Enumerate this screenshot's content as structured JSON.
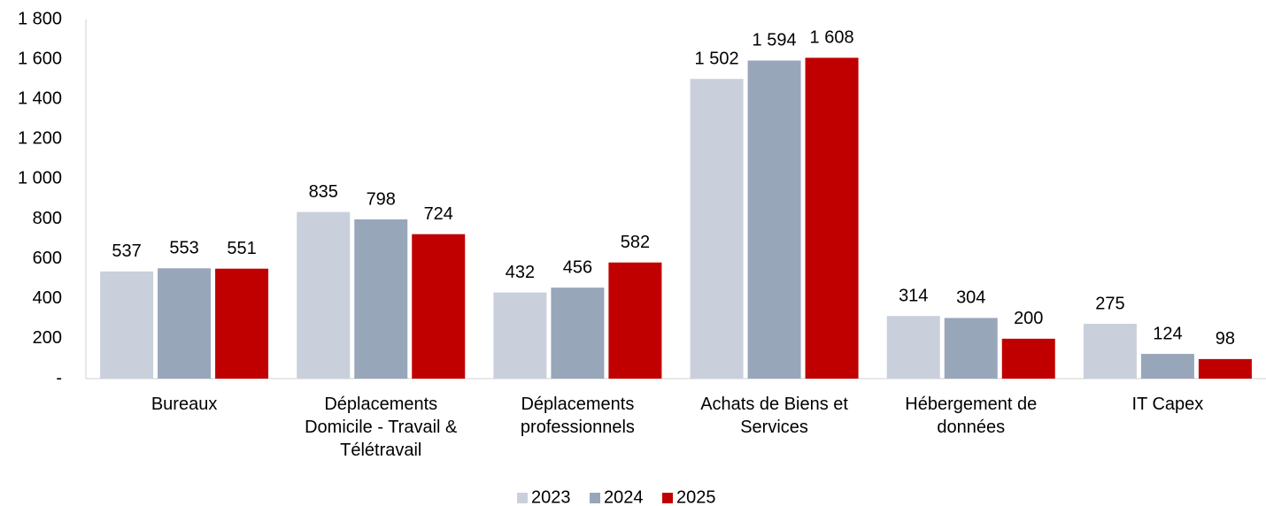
{
  "chart_data": {
    "type": "bar",
    "categories": [
      "Bureaux",
      "Déplacements Domicile - Travail & Télétravail",
      "Déplacements professionnels",
      "Achats de Biens et Services",
      "Hébergement de données",
      "IT Capex"
    ],
    "series": [
      {
        "name": "2023",
        "color": "#c9d0dc",
        "values": [
          537,
          835,
          432,
          1502,
          314,
          275
        ],
        "value_labels": [
          "537",
          "835",
          "432",
          "1 502",
          "314",
          "275"
        ]
      },
      {
        "name": "2024",
        "color": "#98a6ba",
        "values": [
          553,
          798,
          456,
          1594,
          304,
          124
        ],
        "value_labels": [
          "553",
          "798",
          "456",
          "1 594",
          "304",
          "124"
        ]
      },
      {
        "name": "2025",
        "color": "#c00000",
        "values": [
          551,
          724,
          582,
          1608,
          200,
          98
        ],
        "value_labels": [
          "551",
          "724",
          "582",
          "1 608",
          "200",
          "98"
        ]
      }
    ],
    "ylim": [
      0,
      1800
    ],
    "yticks": [
      {
        "value": 0,
        "label": "-"
      },
      200,
      400,
      600,
      800,
      {
        "value": 1000,
        "label": "1 000"
      },
      {
        "value": 1200,
        "label": "1 200"
      },
      {
        "value": 1400,
        "label": "1 400"
      },
      {
        "value": 1600,
        "label": "1 600"
      },
      {
        "value": 1800,
        "label": "1 800"
      }
    ],
    "legend": "bottom"
  }
}
